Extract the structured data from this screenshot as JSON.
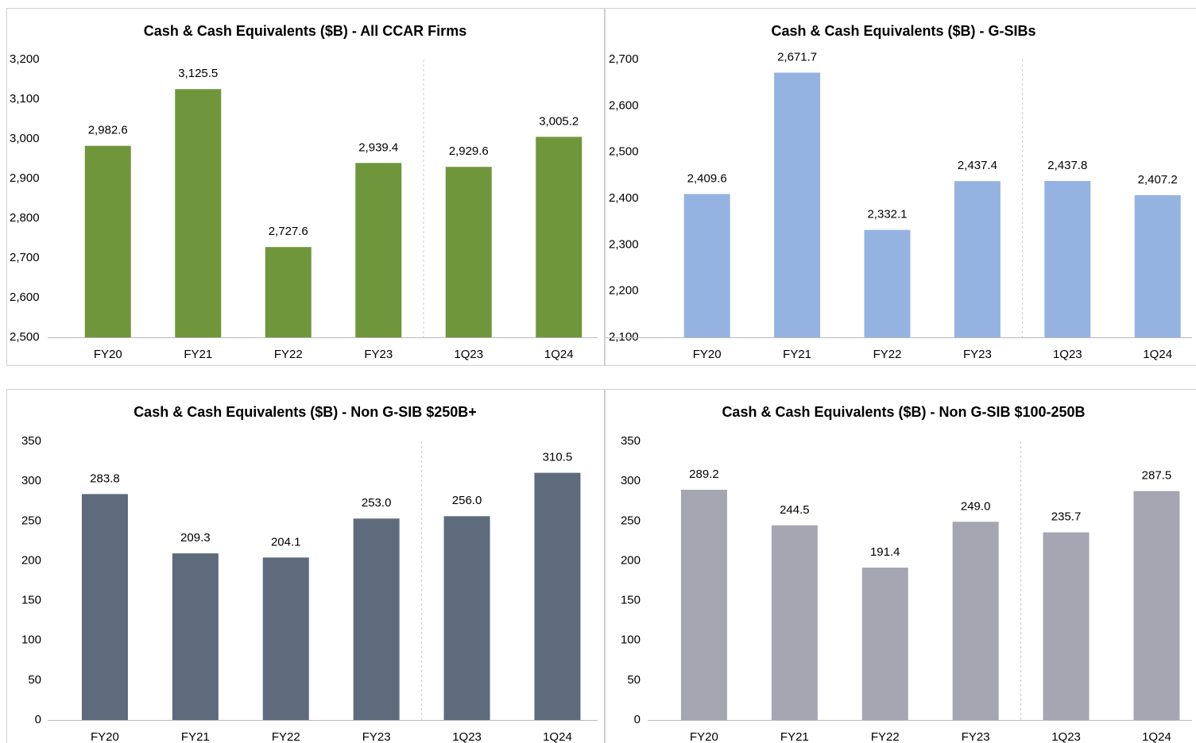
{
  "chart_data": [
    {
      "type": "bar",
      "title": "Cash & Cash Equivalents ($B) - All CCAR Firms",
      "categories": [
        "FY20",
        "FY21",
        "FY22",
        "FY23",
        "1Q23",
        "1Q24"
      ],
      "values": [
        2982.6,
        3125.5,
        2727.6,
        2939.4,
        2929.6,
        3005.2
      ],
      "value_labels": [
        "2,982.6",
        "3,125.5",
        "2,727.6",
        "2,939.4",
        "2,929.6",
        "3,005.2"
      ],
      "color": "#70963c",
      "ylim": [
        2500,
        3200
      ],
      "yticks": [
        {
          "value": 2500,
          "label": "2,500"
        },
        {
          "value": 2600,
          "label": "2,600"
        },
        {
          "value": 2700,
          "label": "2,700"
        },
        {
          "value": 2800,
          "label": "2,800"
        },
        {
          "value": 2900,
          "label": "2,900"
        },
        {
          "value": 3000,
          "label": "3,000"
        },
        {
          "value": 3100,
          "label": "3,100"
        },
        {
          "value": 3200,
          "label": "3,200"
        }
      ]
    },
    {
      "type": "bar",
      "title": "Cash & Cash Equivalents ($B) - G-SIBs",
      "categories": [
        "FY20",
        "FY21",
        "FY22",
        "FY23",
        "1Q23",
        "1Q24"
      ],
      "values": [
        2409.6,
        2671.7,
        2332.1,
        2437.4,
        2437.8,
        2407.2
      ],
      "value_labels": [
        "2,409.6",
        "2,671.7",
        "2,332.1",
        "2,437.4",
        "2,437.8",
        "2,407.2"
      ],
      "color": "#95b3e0",
      "ylim": [
        2100,
        2700
      ],
      "yticks": [
        {
          "value": 2100,
          "label": "2,100"
        },
        {
          "value": 2200,
          "label": "2,200"
        },
        {
          "value": 2300,
          "label": "2,300"
        },
        {
          "value": 2400,
          "label": "2,400"
        },
        {
          "value": 2500,
          "label": "2,500"
        },
        {
          "value": 2600,
          "label": "2,600"
        },
        {
          "value": 2700,
          "label": "2,700"
        }
      ]
    },
    {
      "type": "bar",
      "title": "Cash & Cash Equivalents ($B) - Non G-SIB $250B+",
      "categories": [
        "FY20",
        "FY21",
        "FY22",
        "FY23",
        "1Q23",
        "1Q24"
      ],
      "values": [
        283.8,
        209.3,
        204.1,
        253.0,
        256.0,
        310.5
      ],
      "value_labels": [
        "283.8",
        "209.3",
        "204.1",
        "253.0",
        "256.0",
        "310.5"
      ],
      "color": "#5d6b7d",
      "ylim": [
        0,
        350
      ],
      "yticks": [
        0,
        50,
        100,
        150,
        200,
        250,
        300,
        350
      ]
    },
    {
      "type": "bar",
      "title": "Cash & Cash Equivalents ($B) - Non G-SIB $100-250B",
      "categories": [
        "FY20",
        "FY21",
        "FY22",
        "FY23",
        "1Q23",
        "1Q24"
      ],
      "values": [
        289.2,
        244.5,
        191.4,
        249.0,
        235.7,
        287.5
      ],
      "value_labels": [
        "289.2",
        "244.5",
        "191.4",
        "249.0",
        "235.7",
        "287.5"
      ],
      "color": "#a5a6b1",
      "ylim": [
        0,
        350
      ],
      "yticks": [
        0,
        50,
        100,
        150,
        200,
        250,
        300,
        350
      ]
    }
  ]
}
